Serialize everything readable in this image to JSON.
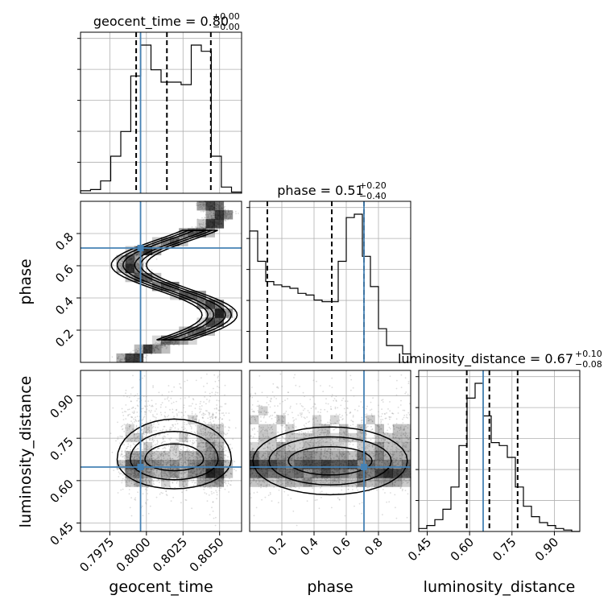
{
  "chart_data": {
    "type": "corner",
    "parameters": [
      "geocent_time",
      "phase",
      "luminosity_distance"
    ],
    "truth": {
      "geocent_time": 0.7996,
      "phase": 0.71,
      "luminosity_distance": 0.648
    },
    "colors": {
      "truth": "#4682b4",
      "hist": "#000000",
      "grid": "#b0b0b0",
      "density": "#000000"
    },
    "grid": true,
    "titles": {
      "geocent_time": {
        "name": "geocent_time",
        "median": "0.80",
        "plus": "+0.00",
        "minus": "−0.00"
      },
      "phase": {
        "name": "phase",
        "median": "0.51",
        "plus": "+0.20",
        "minus": "−0.40"
      },
      "luminosity_distance": {
        "name": "luminosity_distance",
        "median": "0.67",
        "plus": "+0.10",
        "minus": "−0.08"
      }
    },
    "axes": {
      "geocent_time": {
        "range": [
          0.7955,
          0.8065
        ],
        "ticks": [
          "0.7975",
          "0.8000",
          "0.8025",
          "0.8050"
        ],
        "tick_values": [
          0.7975,
          0.8,
          0.8025,
          0.805
        ]
      },
      "phase": {
        "range": [
          0.0,
          1.0
        ],
        "ticks": [
          "0.2",
          "0.4",
          "0.6",
          "0.8"
        ],
        "tick_values": [
          0.2,
          0.4,
          0.6,
          0.8
        ]
      },
      "luminosity_distance": {
        "range": [
          0.42,
          0.99
        ],
        "ticks": [
          "0.45",
          "0.60",
          "0.75",
          "0.90"
        ],
        "tick_values": [
          0.45,
          0.6,
          0.75,
          0.9
        ]
      }
    },
    "quantiles": {
      "geocent_time": [
        0.7993,
        0.8014,
        0.8044
      ],
      "phase": [
        0.11,
        0.51,
        0.71
      ],
      "luminosity_distance": [
        0.59,
        0.67,
        0.77
      ]
    },
    "histograms": {
      "geocent_time": {
        "edges": [
          0.7955,
          0.79618,
          0.79687,
          0.79756,
          0.79825,
          0.79893,
          0.79962,
          0.80031,
          0.801,
          0.80168,
          0.80237,
          0.80306,
          0.80375,
          0.80443,
          0.80512,
          0.80581,
          0.8065
        ],
        "counts": [
          2,
          3,
          10,
          30,
          50,
          95,
          120,
          100,
          90,
          90,
          88,
          120,
          115,
          30,
          5,
          1
        ]
      },
      "phase": {
        "edges": [
          0.0,
          0.05,
          0.1,
          0.15,
          0.2,
          0.25,
          0.3,
          0.35,
          0.4,
          0.45,
          0.5,
          0.55,
          0.6,
          0.65,
          0.7,
          0.75,
          0.8,
          0.85,
          0.9,
          0.95,
          1.0
        ],
        "counts": [
          78,
          60,
          48,
          46,
          45,
          44,
          41,
          40,
          37,
          36,
          36,
          60,
          86,
          88,
          63,
          45,
          20,
          10,
          10,
          5
        ]
      },
      "luminosity_distance": {
        "edges": [
          0.42,
          0.4485,
          0.477,
          0.5055,
          0.534,
          0.5625,
          0.591,
          0.6195,
          0.648,
          0.6765,
          0.705,
          0.7335,
          0.762,
          0.7905,
          0.819,
          0.8475,
          0.876,
          0.9045,
          0.933,
          0.9615,
          0.99
        ],
        "counts": [
          2,
          4,
          8,
          15,
          30,
          58,
          90,
          100,
          78,
          60,
          58,
          50,
          30,
          17,
          10,
          6,
          4,
          2,
          1,
          0
        ]
      }
    }
  }
}
